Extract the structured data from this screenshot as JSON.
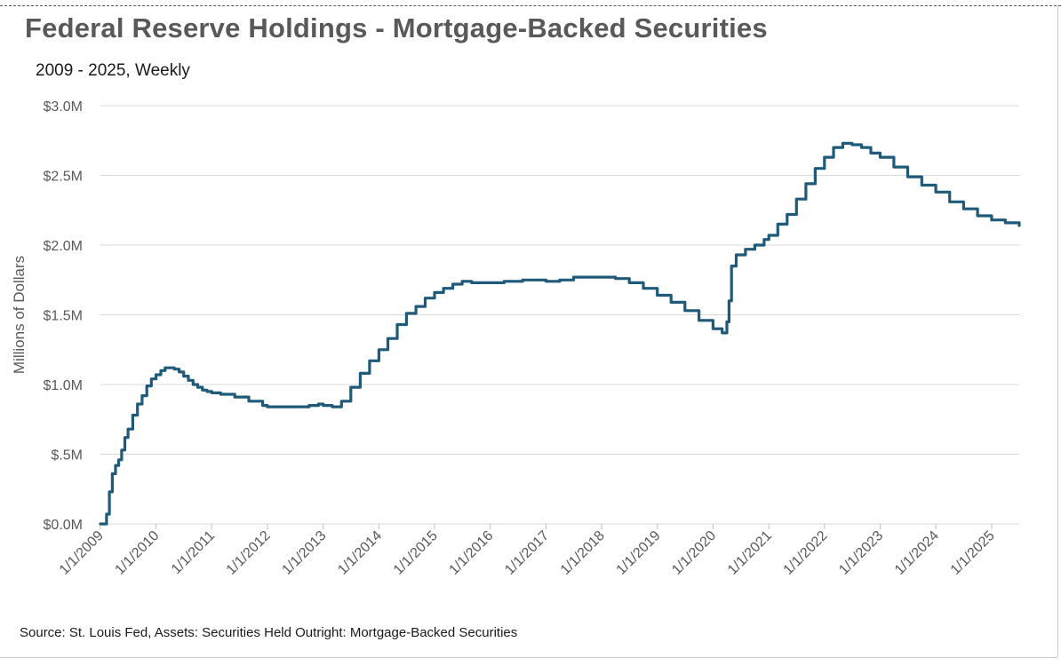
{
  "title": "Federal Reserve Holdings - Mortgage-Backed Securities",
  "subtitle": "2009 - 2025, Weekly",
  "source": "Source: St. Louis Fed, Assets: Securities Held Outright: Mortgage-Backed Securities",
  "colors": {
    "line": "#1f5a7a",
    "grid": "#d9d9d9",
    "text": "#595959"
  },
  "chart_data": {
    "type": "line",
    "title": "Federal Reserve Holdings - Mortgage-Backed Securities",
    "subtitle": "2009 - 2025, Weekly",
    "ylabel": "Millions of Dollars",
    "xlabel": "",
    "ylim": [
      0,
      3.0
    ],
    "xlim": [
      "2009-01-01",
      "2025-07-01"
    ],
    "grid": "horizontal",
    "legend": "none",
    "y_ticks": [
      {
        "value": 0.0,
        "label": "$0.0M"
      },
      {
        "value": 0.5,
        "label": "$.5M"
      },
      {
        "value": 1.0,
        "label": "$1.0M"
      },
      {
        "value": 1.5,
        "label": "$1.5M"
      },
      {
        "value": 2.0,
        "label": "$2.0M"
      },
      {
        "value": 2.5,
        "label": "$2.5M"
      },
      {
        "value": 3.0,
        "label": "$3.0M"
      }
    ],
    "x_ticks": [
      {
        "value": "2009-01-01",
        "label": "1/1/2009"
      },
      {
        "value": "2010-01-01",
        "label": "1/1/2010"
      },
      {
        "value": "2011-01-01",
        "label": "1/1/2011"
      },
      {
        "value": "2012-01-01",
        "label": "1/1/2012"
      },
      {
        "value": "2013-01-01",
        "label": "1/1/2013"
      },
      {
        "value": "2014-01-01",
        "label": "1/1/2014"
      },
      {
        "value": "2015-01-01",
        "label": "1/1/2015"
      },
      {
        "value": "2016-01-01",
        "label": "1/1/2016"
      },
      {
        "value": "2017-01-01",
        "label": "1/1/2017"
      },
      {
        "value": "2018-01-01",
        "label": "1/1/2018"
      },
      {
        "value": "2019-01-01",
        "label": "1/1/2019"
      },
      {
        "value": "2020-01-01",
        "label": "1/1/2020"
      },
      {
        "value": "2021-01-01",
        "label": "1/1/2021"
      },
      {
        "value": "2022-01-01",
        "label": "1/1/2022"
      },
      {
        "value": "2023-01-01",
        "label": "1/1/2023"
      },
      {
        "value": "2024-01-01",
        "label": "1/1/2024"
      },
      {
        "value": "2025-01-01",
        "label": "1/1/2025"
      }
    ],
    "series": [
      {
        "x": [
          "2009-01-01",
          "2009-01-20",
          "2009-02-10",
          "2009-03-01",
          "2009-03-20",
          "2009-04-10",
          "2009-05-01",
          "2009-05-20",
          "2009-06-10",
          "2009-07-01",
          "2009-08-01",
          "2009-09-01",
          "2009-10-01",
          "2009-11-01",
          "2009-12-01",
          "2010-01-01",
          "2010-02-01",
          "2010-03-01",
          "2010-04-01",
          "2010-05-01",
          "2010-06-01",
          "2010-07-01",
          "2010-08-01",
          "2010-09-01",
          "2010-10-01",
          "2010-11-01",
          "2010-12-01",
          "2011-01-01",
          "2011-03-01",
          "2011-06-01",
          "2011-09-01",
          "2011-12-01",
          "2012-01-01",
          "2012-04-01",
          "2012-07-01",
          "2012-10-01",
          "2012-12-01",
          "2013-01-01",
          "2013-03-01",
          "2013-05-01",
          "2013-07-01",
          "2013-09-01",
          "2013-11-01",
          "2014-01-01",
          "2014-03-01",
          "2014-05-01",
          "2014-07-01",
          "2014-09-01",
          "2014-11-01",
          "2015-01-01",
          "2015-03-01",
          "2015-05-01",
          "2015-07-01",
          "2015-09-01",
          "2015-12-01",
          "2016-04-01",
          "2016-08-01",
          "2016-12-01",
          "2017-01-01",
          "2017-04-01",
          "2017-07-01",
          "2017-10-01",
          "2018-01-01",
          "2018-04-01",
          "2018-07-01",
          "2018-10-01",
          "2019-01-01",
          "2019-04-01",
          "2019-07-01",
          "2019-10-01",
          "2020-01-01",
          "2020-03-01",
          "2020-03-20",
          "2020-04-01",
          "2020-04-15",
          "2020-05-01",
          "2020-06-01",
          "2020-08-01",
          "2020-10-01",
          "2020-12-01",
          "2021-01-01",
          "2021-03-01",
          "2021-05-01",
          "2021-07-01",
          "2021-09-01",
          "2021-11-01",
          "2022-01-01",
          "2022-03-01",
          "2022-05-01",
          "2022-07-01",
          "2022-09-01",
          "2022-11-01",
          "2023-01-01",
          "2023-04-01",
          "2023-07-01",
          "2023-10-01",
          "2024-01-01",
          "2024-04-01",
          "2024-07-01",
          "2024-10-01",
          "2025-01-01",
          "2025-04-01",
          "2025-07-01"
        ],
        "y": [
          0.0,
          0.0,
          0.07,
          0.23,
          0.36,
          0.42,
          0.46,
          0.53,
          0.62,
          0.68,
          0.78,
          0.86,
          0.92,
          0.99,
          1.04,
          1.07,
          1.1,
          1.12,
          1.12,
          1.11,
          1.09,
          1.06,
          1.03,
          1.0,
          0.98,
          0.96,
          0.95,
          0.94,
          0.93,
          0.91,
          0.88,
          0.85,
          0.84,
          0.84,
          0.84,
          0.85,
          0.86,
          0.85,
          0.84,
          0.88,
          0.98,
          1.08,
          1.17,
          1.25,
          1.33,
          1.43,
          1.51,
          1.56,
          1.62,
          1.66,
          1.69,
          1.72,
          1.74,
          1.73,
          1.73,
          1.74,
          1.75,
          1.75,
          1.74,
          1.75,
          1.77,
          1.77,
          1.77,
          1.76,
          1.73,
          1.69,
          1.64,
          1.59,
          1.53,
          1.46,
          1.4,
          1.37,
          1.37,
          1.45,
          1.6,
          1.85,
          1.93,
          1.97,
          2.0,
          2.04,
          2.07,
          2.15,
          2.22,
          2.33,
          2.44,
          2.55,
          2.63,
          2.7,
          2.73,
          2.72,
          2.7,
          2.66,
          2.63,
          2.56,
          2.49,
          2.43,
          2.38,
          2.31,
          2.26,
          2.21,
          2.18,
          2.16,
          2.14
        ]
      }
    ]
  }
}
